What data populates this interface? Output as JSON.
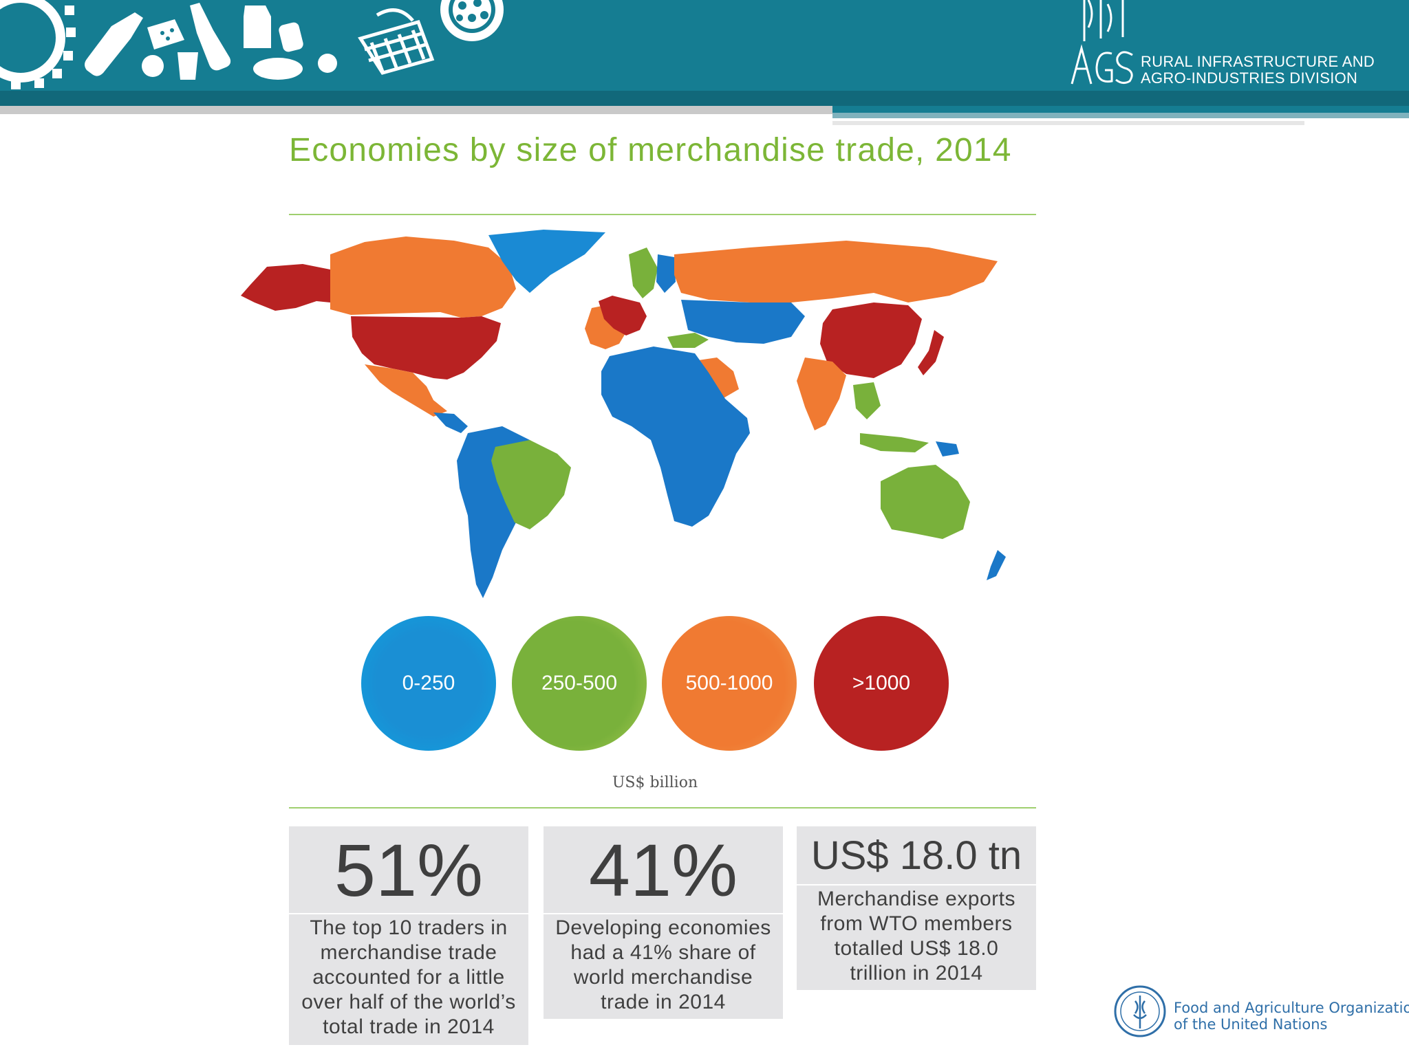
{
  "header": {
    "division_line1": "RURAL INFRASTRUCTURE AND",
    "division_line2": "AGRO-INDUSTRIES DIVISION",
    "logo_text": "AGS"
  },
  "slide": {
    "title": "Economies by size of merchandise trade, 2014"
  },
  "map": {
    "colors": {
      "0-250": "#1a78c8",
      "250-500": "#79b13b",
      "500-1000": "#f07a32",
      ">1000": "#b82222",
      "greenland": "#1a8ad4"
    }
  },
  "legend": {
    "items": [
      {
        "label": "0-250",
        "color": "#1a8fd4"
      },
      {
        "label": "250-500",
        "color": "#79b13b"
      },
      {
        "label": "500-1000",
        "color": "#f07a32"
      },
      {
        "label": ">1000",
        "color": "#b82222"
      }
    ],
    "unit": "US$ billion"
  },
  "stats": [
    {
      "value": "51%",
      "lines": [
        "The top 10 traders in",
        "merchandise trade",
        "accounted for a little",
        "over half of the world’s",
        "total trade in 2014"
      ]
    },
    {
      "value": "41%",
      "lines": [
        "Developing economies",
        "had a 41% share of",
        "world merchandise",
        "trade in 2014"
      ]
    },
    {
      "value": "US$ 18.0 tn",
      "lines": [
        "Merchandise exports",
        "from WTO members",
        "totalled US$ 18.0",
        "trillion in 2014"
      ]
    }
  ],
  "footer": {
    "org_line1": "Food and Agriculture Organization",
    "org_line2": "of the United Nations"
  }
}
